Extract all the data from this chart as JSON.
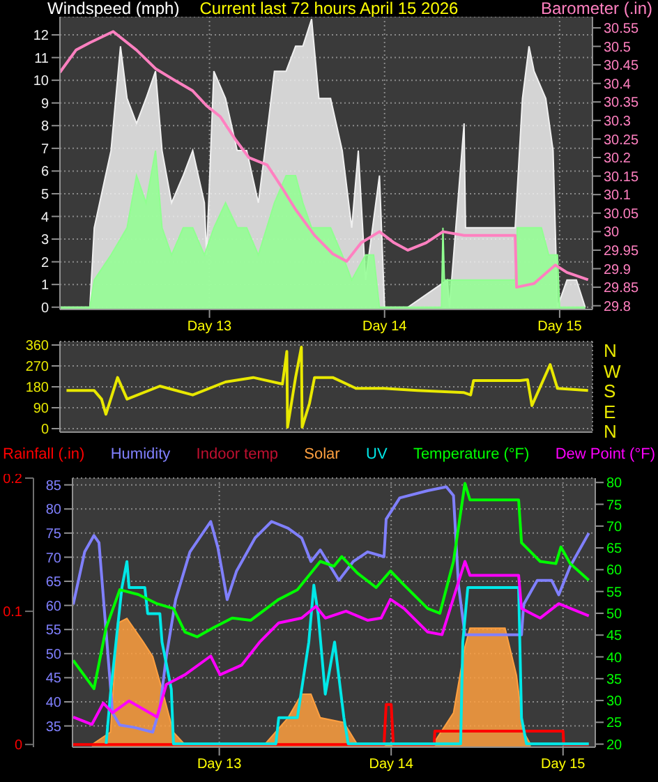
{
  "chart_data": [
    {
      "type": "area",
      "title": "Current last 72 hours April 15 2026",
      "ylabel": "Windspeed (mph)",
      "y2label": "Barometer (.in)",
      "xlim": [
        "2026-04-12T03:30",
        "2026-04-15T04:30"
      ],
      "xticks": [
        {
          "value": "2026-04-13T00:00",
          "label": "Day 13"
        },
        {
          "value": "2026-04-14T00:00",
          "label": "Day 14"
        },
        {
          "value": "2026-04-15T00:00",
          "label": "Day 15"
        }
      ],
      "ylim": [
        -0.1,
        12.8
      ],
      "yticks": [
        0,
        1,
        2,
        3,
        4,
        5,
        6,
        7,
        8,
        9,
        10,
        11,
        12
      ],
      "y2lim": [
        29.79,
        30.58
      ],
      "y2ticks": [
        29.8,
        29.85,
        29.9,
        29.95,
        30,
        30.05,
        30.1,
        30.15,
        30.2,
        30.25,
        30.3,
        30.35,
        30.4,
        30.45,
        30.5,
        30.55
      ],
      "grid": true,
      "series": [
        {
          "color": "#f0f0f0",
          "x": [
            "2026-04-12T03:30",
            "2026-04-12T07:36",
            "2026-04-12T08:12",
            "2026-04-12T10:30",
            "2026-04-12T11:48",
            "2026-04-12T12:42",
            "2026-04-12T14:00",
            "2026-04-12T15:18",
            "2026-04-12T16:36",
            "2026-04-12T17:30",
            "2026-04-12T18:48",
            "2026-04-12T20:24",
            "2026-04-12T21:42",
            "2026-04-12T23:18",
            "2026-04-12T23:36",
            "2026-04-13T00:36",
            "2026-04-13T02:12",
            "2026-04-13T03:48",
            "2026-04-13T05:06",
            "2026-04-13T06:42",
            "2026-04-13T07:36",
            "2026-04-13T08:54",
            "2026-04-13T10:30",
            "2026-04-13T11:48",
            "2026-04-13T12:48",
            "2026-04-13T14:00",
            "2026-04-13T15:00",
            "2026-04-13T16:36",
            "2026-04-13T18:12",
            "2026-04-13T19:30",
            "2026-04-13T20:24",
            "2026-04-13T21:24",
            "2026-04-13T23:18",
            "2026-04-14T00:00",
            "2026-04-14T03:12",
            "2026-04-14T08:36",
            "2026-04-14T08:54",
            "2026-04-14T10:54",
            "2026-04-14T11:06",
            "2026-04-14T17:54",
            "2026-04-14T18:54",
            "2026-04-14T19:48",
            "2026-04-14T20:30",
            "2026-04-14T22:06",
            "2026-04-14T23:06",
            "2026-04-14T23:42",
            "2026-04-15T01:00",
            "2026-04-15T02:18",
            "2026-04-15T03:30"
          ],
          "values": [
            0,
            0,
            3.5,
            6.9,
            11.5,
            9.2,
            8.1,
            9.2,
            10.4,
            6.9,
            4.6,
            5.8,
            6.9,
            4.6,
            2.3,
            10.4,
            9.2,
            6.9,
            6.9,
            4.6,
            6.9,
            10.4,
            10.4,
            11.5,
            11.5,
            12.7,
            9.2,
            9.2,
            6.9,
            3.5,
            6.9,
            1.2,
            5.8,
            0,
            0,
            1.2,
            0,
            8.1,
            3.5,
            3.5,
            9.2,
            11.5,
            10.4,
            9.2,
            6.9,
            0,
            1.2,
            1.2,
            0
          ]
        },
        {
          "color": "#90ff90",
          "x": [
            "2026-04-12T03:30",
            "2026-04-12T07:36",
            "2026-04-12T08:12",
            "2026-04-12T10:30",
            "2026-04-12T12:42",
            "2026-04-12T14:00",
            "2026-04-12T15:18",
            "2026-04-12T16:36",
            "2026-04-12T17:30",
            "2026-04-12T18:48",
            "2026-04-12T20:24",
            "2026-04-12T21:42",
            "2026-04-12T23:18",
            "2026-04-13T00:36",
            "2026-04-13T02:12",
            "2026-04-13T03:48",
            "2026-04-13T05:06",
            "2026-04-13T06:42",
            "2026-04-13T08:54",
            "2026-04-13T10:30",
            "2026-04-13T11:48",
            "2026-04-13T12:48",
            "2026-04-13T14:00",
            "2026-04-13T15:00",
            "2026-04-13T16:36",
            "2026-04-13T18:12",
            "2026-04-13T19:30",
            "2026-04-13T21:24",
            "2026-04-13T22:30",
            "2026-04-13T23:18",
            "2026-04-14T03:12",
            "2026-04-14T07:48",
            "2026-04-14T08:00",
            "2026-04-14T08:12",
            "2026-04-14T17:54",
            "2026-04-14T18:12",
            "2026-04-14T19:48",
            "2026-04-14T21:30",
            "2026-04-14T22:30",
            "2026-04-14T23:42",
            "2026-04-15T00:00",
            "2026-04-15T03:30"
          ],
          "values": [
            0,
            0,
            1.2,
            2.3,
            3.5,
            5.8,
            4.6,
            6.9,
            3.5,
            2.3,
            3.5,
            3.5,
            2.3,
            3.5,
            4.6,
            3.5,
            3.5,
            2.3,
            4.6,
            5.8,
            5.8,
            4.6,
            3.5,
            3.5,
            3.5,
            2.3,
            1.2,
            2.3,
            2.3,
            0,
            0,
            0,
            3.5,
            1.2,
            1.2,
            3.5,
            3.5,
            3.5,
            2.3,
            2.3,
            0,
            0
          ]
        },
        {
          "type": "line",
          "axis": "y2",
          "color": "#ff80c0",
          "x": [
            "2026-04-12T03:30",
            "2026-04-12T05:42",
            "2026-04-12T07:36",
            "2026-04-12T10:48",
            "2026-04-12T14:00",
            "2026-04-12T16:36",
            "2026-04-12T19:06",
            "2026-04-12T21:42",
            "2026-04-12T23:36",
            "2026-04-13T01:30",
            "2026-04-13T03:30",
            "2026-04-13T05:24",
            "2026-04-13T07:54",
            "2026-04-13T09:54",
            "2026-04-13T11:48",
            "2026-04-13T14:24",
            "2026-04-13T16:54",
            "2026-04-13T18:48",
            "2026-04-13T20:48",
            "2026-04-13T23:18",
            "2026-04-14T01:18",
            "2026-04-14T03:12",
            "2026-04-14T05:42",
            "2026-04-14T08:00",
            "2026-04-14T10:54",
            "2026-04-14T17:54",
            "2026-04-14T18:06",
            "2026-04-14T20:30",
            "2026-04-14T23:24",
            "2026-04-15T01:00",
            "2026-04-15T03:54"
          ],
          "values": [
            30.43,
            30.49,
            30.51,
            30.54,
            30.49,
            30.44,
            30.41,
            30.38,
            30.34,
            30.31,
            30.25,
            30.2,
            30.18,
            30.12,
            30.06,
            29.99,
            29.94,
            29.92,
            29.97,
            30,
            29.97,
            29.95,
            29.97,
            30,
            29.99,
            29.99,
            29.85,
            29.86,
            29.91,
            29.89,
            29.87
          ]
        }
      ]
    },
    {
      "type": "line",
      "xlim": [
        "2026-04-12T03:30",
        "2026-04-15T04:30"
      ],
      "xticks": [
        {
          "value": "2026-04-13T00:00",
          "label": null
        },
        {
          "value": "2026-04-14T00:00",
          "label": null
        },
        {
          "value": "2026-04-15T00:00",
          "label": null
        }
      ],
      "ylim": [
        -15,
        375
      ],
      "yticks": [
        0,
        90,
        180,
        270,
        360
      ],
      "tick_labels": "y",
      "grid": true,
      "annotations": [
        "N",
        "W",
        "S",
        "E",
        "N"
      ],
      "series": [
        {
          "color": "#e8e800",
          "x": [
            "2026-04-12T04:24",
            "2026-04-12T08:12",
            "2026-04-12T09:12",
            "2026-04-12T09:48",
            "2026-04-12T11:24",
            "2026-04-12T12:42",
            "2026-04-12T17:12",
            "2026-04-12T21:42",
            "2026-04-13T02:12",
            "2026-04-13T06:00",
            "2026-04-13T10:00",
            "2026-04-13T10:36",
            "2026-04-13T10:42",
            "2026-04-13T11:48",
            "2026-04-13T12:36",
            "2026-04-13T12:42",
            "2026-04-13T13:42",
            "2026-04-13T14:24",
            "2026-04-13T16:54",
            "2026-04-13T20:06",
            "2026-04-13T23:54",
            "2026-04-14T04:30",
            "2026-04-14T10:54",
            "2026-04-14T11:48",
            "2026-04-14T12:12",
            "2026-04-14T18:36",
            "2026-04-14T19:36",
            "2026-04-14T20:12",
            "2026-04-14T22:42",
            "2026-04-14T23:42",
            "2026-04-15T03:54"
          ],
          "values": [
            164,
            164,
            127,
            62,
            220,
            127,
            183,
            145,
            201,
            220,
            192,
            332,
            6,
            220,
            351,
            6,
            108,
            220,
            220,
            173,
            173,
            164,
            155,
            145,
            207,
            207,
            211,
            99,
            276,
            173,
            164
          ]
        }
      ]
    },
    {
      "type": "line",
      "legend": "top",
      "xlim": [
        "2026-04-12T03:30",
        "2026-04-15T04:30"
      ],
      "xticks": [
        {
          "value": "2026-04-13T00:00",
          "label": "Day 13"
        },
        {
          "value": "2026-04-14T00:00",
          "label": "Day 14"
        },
        {
          "value": "2026-04-15T00:00",
          "label": "Day 15"
        }
      ],
      "ylim": [
        30.6,
        86.4
      ],
      "yticks": [
        35,
        40,
        45,
        50,
        55,
        60,
        65,
        70,
        75,
        80,
        85
      ],
      "y2lim": [
        19.3,
        81
      ],
      "y2ticks": [
        20,
        25,
        30,
        35,
        40,
        45,
        50,
        55,
        60,
        65,
        70,
        75,
        80
      ],
      "y3lim": [
        -0.002,
        0.2
      ],
      "y3ticks": [
        0,
        0.1,
        0.2
      ],
      "grid": true,
      "series": [
        {
          "name": "Rainfall (.in)",
          "axis": "y3",
          "color": "#ff0000",
          "x": [
            "2026-04-12T03:36",
            "2026-04-13T23:00",
            "2026-04-13T23:18",
            "2026-04-14T00:00",
            "2026-04-14T00:18",
            "2026-04-14T06:00",
            "2026-04-14T06:06",
            "2026-04-15T00:00",
            "2026-04-15T00:06",
            "2026-04-15T03:36"
          ],
          "values": [
            0,
            0,
            0.03,
            0.03,
            0,
            0,
            0.01,
            0.01,
            0,
            0
          ]
        },
        {
          "name": "Humidity",
          "color": "#8080ff",
          "x": [
            "2026-04-12T03:36",
            "2026-04-12T05:12",
            "2026-04-12T06:30",
            "2026-04-12T07:12",
            "2026-04-12T08:12",
            "2026-04-12T09:06",
            "2026-04-12T10:06",
            "2026-04-12T12:06",
            "2026-04-12T14:42",
            "2026-04-12T15:42",
            "2026-04-12T16:36",
            "2026-04-12T17:54",
            "2026-04-12T19:54",
            "2026-04-12T22:48",
            "2026-04-12T23:48",
            "2026-04-13T01:06",
            "2026-04-13T02:24",
            "2026-04-13T05:00",
            "2026-04-13T07:18",
            "2026-04-13T09:36",
            "2026-04-13T11:30",
            "2026-04-13T12:48",
            "2026-04-13T14:06",
            "2026-04-13T16:42",
            "2026-04-13T18:42",
            "2026-04-13T20:42",
            "2026-04-13T23:00",
            "2026-04-13T23:18",
            "2026-04-14T01:12",
            "2026-04-14T05:06",
            "2026-04-14T07:42",
            "2026-04-14T08:42",
            "2026-04-14T09:24",
            "2026-04-14T10:18",
            "2026-04-14T18:12",
            "2026-04-14T18:30",
            "2026-04-14T20:24",
            "2026-04-14T22:24",
            "2026-04-14T23:24",
            "2026-04-15T01:00",
            "2026-04-15T03:36"
          ],
          "values": [
            60.2,
            71.1,
            74.5,
            73.0,
            54.4,
            37.7,
            35.2,
            34.7,
            33.7,
            38.6,
            49.4,
            61.2,
            71.1,
            77.4,
            72.0,
            61.2,
            67.1,
            74.0,
            77.4,
            76.0,
            74.0,
            69.1,
            71.5,
            65.2,
            69.1,
            71.1,
            70.1,
            77.9,
            82.3,
            83.8,
            84.6,
            82.8,
            64.2,
            53.9,
            53.9,
            60.2,
            65.2,
            65.2,
            62.2,
            68.1,
            75.0
          ]
        },
        {
          "name": "Indoor temp",
          "color": "#c01030"
        },
        {
          "name": "Solar",
          "type": "area",
          "color": "#ffa040",
          "x": [
            "2026-04-12T06:12",
            "2026-04-12T08:48",
            "2026-04-12T09:48",
            "2026-04-12T11:06",
            "2026-04-12T13:24",
            "2026-04-12T14:42",
            "2026-04-12T16:00",
            "2026-04-12T17:36",
            "2026-04-12T19:12",
            "2026-04-13T06:18",
            "2026-04-13T09:36",
            "2026-04-13T11:30",
            "2026-04-13T12:48",
            "2026-04-13T14:06",
            "2026-04-13T17:24",
            "2026-04-13T19:18",
            "2026-04-14T05:48",
            "2026-04-14T08:42",
            "2026-04-14T10:18",
            "2026-04-14T11:00",
            "2026-04-14T15:54",
            "2026-04-14T17:30",
            "2026-04-14T18:30",
            "2026-04-14T19:30"
          ],
          "values": [
            31.1,
            33.7,
            56.3,
            57.3,
            52.4,
            49.4,
            42.6,
            33.7,
            31.1,
            31.1,
            36.7,
            41.6,
            41.6,
            36.7,
            35.7,
            31.1,
            31.1,
            37.7,
            51.4,
            55.3,
            55.3,
            45.5,
            33.7,
            31.1
          ]
        },
        {
          "name": "UV",
          "color": "#00e8e8",
          "x": [
            "2026-04-12T08:12",
            "2026-04-12T08:48",
            "2026-04-12T10:24",
            "2026-04-12T11:06",
            "2026-04-12T11:24",
            "2026-04-12T13:36",
            "2026-04-12T14:00",
            "2026-04-12T15:42",
            "2026-04-12T16:00",
            "2026-04-12T17:18",
            "2026-04-12T17:36",
            "2026-04-13T07:54",
            "2026-04-13T08:18",
            "2026-04-13T10:54",
            "2026-04-13T12:30",
            "2026-04-13T13:12",
            "2026-04-13T13:48",
            "2026-04-13T14:48",
            "2026-04-13T16:06",
            "2026-04-13T17:24",
            "2026-04-13T18:00",
            "2026-04-14T09:42",
            "2026-04-14T10:00",
            "2026-04-14T10:42",
            "2026-04-14T17:48",
            "2026-04-14T18:12",
            "2026-04-14T18:54",
            "2026-04-15T03:36"
          ],
          "values": [
            31.3,
            41.6,
            63.7,
            69.1,
            63.7,
            63.7,
            58.3,
            58.3,
            52.4,
            42.6,
            31.3,
            31.3,
            36.7,
            36.7,
            52.4,
            64.2,
            58.3,
            41.6,
            52.4,
            36.7,
            31.3,
            31.3,
            52.4,
            63.7,
            63.7,
            36.7,
            31.3,
            31.3
          ]
        },
        {
          "name": "Temperature (°F)",
          "axis": "y2",
          "color": "#00ff00",
          "x": [
            "2026-04-12T03:36",
            "2026-04-12T06:30",
            "2026-04-12T08:12",
            "2026-04-12T10:06",
            "2026-04-12T12:42",
            "2026-04-12T15:18",
            "2026-04-12T17:36",
            "2026-04-12T19:12",
            "2026-04-12T20:54",
            "2026-04-12T23:12",
            "2026-04-13T01:48",
            "2026-04-13T04:24",
            "2026-04-13T08:18",
            "2026-04-13T10:54",
            "2026-04-13T14:06",
            "2026-04-13T16:00",
            "2026-04-13T17:06",
            "2026-04-13T19:18",
            "2026-04-13T21:54",
            "2026-04-13T23:54",
            "2026-04-14T01:48",
            "2026-04-14T05:06",
            "2026-04-14T06:48",
            "2026-04-14T08:42",
            "2026-04-14T10:18",
            "2026-04-14T11:00",
            "2026-04-14T17:48",
            "2026-04-14T18:12",
            "2026-04-14T20:48",
            "2026-04-14T23:00",
            "2026-04-14T23:42",
            "2026-04-15T01:00",
            "2026-04-15T03:36"
          ],
          "values": [
            39.2,
            32.7,
            46.7,
            55.4,
            54.3,
            52.2,
            51.1,
            45.7,
            44.6,
            46.7,
            48.9,
            48.4,
            53.2,
            55.4,
            61.9,
            60.8,
            63.0,
            59.2,
            55.9,
            59.7,
            56.5,
            51.1,
            50.0,
            61.9,
            79.8,
            76.0,
            76.0,
            66.2,
            61.9,
            61.4,
            65.2,
            61.4,
            57.6
          ]
        },
        {
          "name": "Dew Point (°F)",
          "axis": "y2",
          "color": "#ff00ff",
          "x": [
            "2026-04-12T03:36",
            "2026-04-12T06:12",
            "2026-04-12T07:48",
            "2026-04-12T09:06",
            "2026-04-12T11:24",
            "2026-04-12T15:18",
            "2026-04-12T16:36",
            "2026-04-12T19:12",
            "2026-04-12T22:48",
            "2026-04-13T00:06",
            "2026-04-13T03:06",
            "2026-04-13T05:42",
            "2026-04-13T08:18",
            "2026-04-13T11:30",
            "2026-04-13T13:30",
            "2026-04-13T14:48",
            "2026-04-13T17:42",
            "2026-04-13T20:42",
            "2026-04-13T22:36",
            "2026-04-13T23:54",
            "2026-04-14T01:48",
            "2026-04-14T05:06",
            "2026-04-14T07:06",
            "2026-04-14T10:18",
            "2026-04-14T11:00",
            "2026-04-14T17:48",
            "2026-04-14T18:12",
            "2026-04-14T20:48",
            "2026-04-14T23:24",
            "2026-04-15T03:36"
          ],
          "values": [
            26.2,
            24.5,
            29.4,
            27.2,
            29.9,
            26.2,
            33.7,
            35.9,
            40.2,
            35.9,
            38.1,
            43.5,
            47.8,
            48.9,
            51.6,
            48.9,
            50.5,
            48.4,
            48.9,
            53.2,
            51.1,
            45.7,
            45.1,
            61.9,
            58.7,
            58.7,
            51.1,
            48.9,
            52.2,
            49.4
          ]
        }
      ]
    }
  ]
}
